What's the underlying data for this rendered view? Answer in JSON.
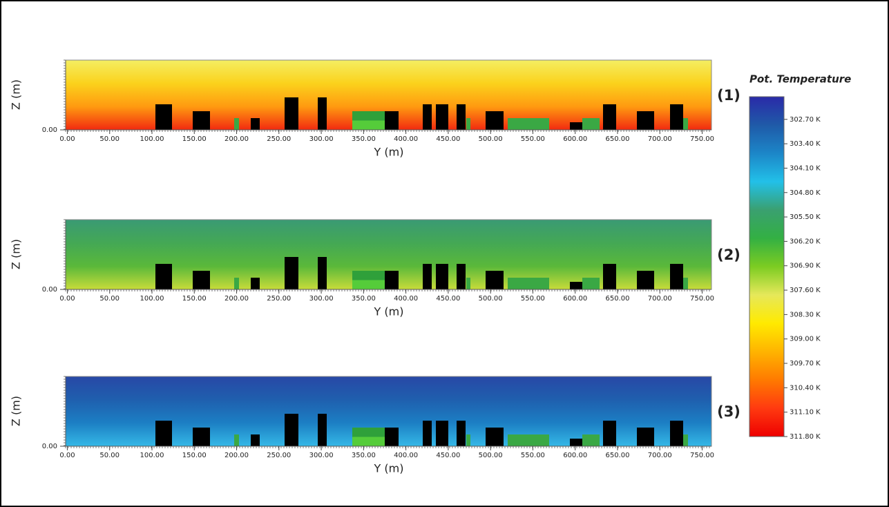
{
  "chart_data": [
    {
      "type": "heatmap",
      "title": "(1)",
      "xlabel": "Y (m)",
      "ylabel": "Z (m)",
      "xlim": [
        -2,
        761
      ],
      "ylim": [
        0,
        41
      ],
      "xticks": [
        {
          "value": 0,
          "label": "0.00"
        },
        {
          "value": 50,
          "label": "50.00"
        },
        {
          "value": 100,
          "label": "100.00"
        },
        {
          "value": 150,
          "label": "150.00"
        },
        {
          "value": 200,
          "label": "200.00"
        },
        {
          "value": 250,
          "label": "250.00"
        },
        {
          "value": 300,
          "label": "300.00"
        },
        {
          "value": 350,
          "label": "350.00"
        },
        {
          "value": 400,
          "label": "400.00"
        },
        {
          "value": 450,
          "label": "450.00"
        },
        {
          "value": 500,
          "label": "500.00"
        },
        {
          "value": 550,
          "label": "550.00"
        },
        {
          "value": 600,
          "label": "600.00"
        },
        {
          "value": 650,
          "label": "650.00"
        },
        {
          "value": 700,
          "label": "700.00"
        },
        {
          "value": 750,
          "label": "750.00"
        }
      ],
      "yticks": [
        {
          "value": 0,
          "label": "0.00"
        }
      ],
      "colors": [
        "#f4ee62",
        "#fbd21c",
        "#ff9a10",
        "#f22a10"
      ]
    },
    {
      "type": "heatmap",
      "title": "(2)",
      "xlabel": "Y (m)",
      "ylabel": "Z (m)",
      "xlim": [
        -2,
        761
      ],
      "ylim": [
        0,
        41
      ],
      "xticks": [
        {
          "value": 0,
          "label": "0.00"
        },
        {
          "value": 50,
          "label": "50.00"
        },
        {
          "value": 100,
          "label": "100.00"
        },
        {
          "value": 150,
          "label": "150.00"
        },
        {
          "value": 200,
          "label": "200.00"
        },
        {
          "value": 250,
          "label": "250.00"
        },
        {
          "value": 300,
          "label": "300.00"
        },
        {
          "value": 350,
          "label": "350.00"
        },
        {
          "value": 400,
          "label": "400.00"
        },
        {
          "value": 450,
          "label": "450.00"
        },
        {
          "value": 500,
          "label": "500.00"
        },
        {
          "value": 550,
          "label": "550.00"
        },
        {
          "value": 600,
          "label": "600.00"
        },
        {
          "value": 650,
          "label": "650.00"
        },
        {
          "value": 700,
          "label": "700.00"
        },
        {
          "value": 750,
          "label": "750.00"
        }
      ],
      "yticks": [
        {
          "value": 0,
          "label": "0.00"
        }
      ],
      "colors": [
        "#3a9a74",
        "#44a855",
        "#5ab83a",
        "#c8dc3a"
      ]
    },
    {
      "type": "heatmap",
      "title": "(3)",
      "xlabel": "Y (m)",
      "ylabel": "Z (m)",
      "xlim": [
        -2,
        761
      ],
      "ylim": [
        0,
        41
      ],
      "xticks": [
        {
          "value": 0,
          "label": "0.00"
        },
        {
          "value": 50,
          "label": "50.00"
        },
        {
          "value": 100,
          "label": "100.00"
        },
        {
          "value": 150,
          "label": "150.00"
        },
        {
          "value": 200,
          "label": "200.00"
        },
        {
          "value": 250,
          "label": "250.00"
        },
        {
          "value": 300,
          "label": "300.00"
        },
        {
          "value": 350,
          "label": "350.00"
        },
        {
          "value": 400,
          "label": "400.00"
        },
        {
          "value": 450,
          "label": "450.00"
        },
        {
          "value": 500,
          "label": "500.00"
        },
        {
          "value": 550,
          "label": "550.00"
        },
        {
          "value": 600,
          "label": "600.00"
        },
        {
          "value": 650,
          "label": "650.00"
        },
        {
          "value": 700,
          "label": "700.00"
        },
        {
          "value": 750,
          "label": "750.00"
        }
      ],
      "yticks": [
        {
          "value": 0,
          "label": "0.00"
        }
      ],
      "colors": [
        "#2848a6",
        "#1f5fae",
        "#1c7fc4",
        "#35b8e6"
      ]
    }
  ],
  "colorbar": {
    "title": "Pot. Temperature",
    "lim": [
      302.05,
      311.8
    ],
    "ticks": [
      {
        "value": 302.7,
        "label": "302.70 K"
      },
      {
        "value": 303.4,
        "label": "303.40 K"
      },
      {
        "value": 304.1,
        "label": "304.10 K"
      },
      {
        "value": 304.8,
        "label": "304.80 K"
      },
      {
        "value": 305.5,
        "label": "305.50 K"
      },
      {
        "value": 306.2,
        "label": "306.20 K"
      },
      {
        "value": 306.9,
        "label": "306.90 K"
      },
      {
        "value": 307.6,
        "label": "307.60 K"
      },
      {
        "value": 308.3,
        "label": "308.30 K"
      },
      {
        "value": 309,
        "label": "309.00 K"
      },
      {
        "value": 309.7,
        "label": "309.70 K"
      },
      {
        "value": 310.4,
        "label": "310.40 K"
      },
      {
        "value": 311.1,
        "label": "311.10 K"
      },
      {
        "value": 311.8,
        "label": "311.80 K"
      }
    ],
    "colors": [
      "#2a2aa8",
      "#1f5aa8",
      "#1c86c8",
      "#22c0e8",
      "#3aa070",
      "#33b043",
      "#7ccc22",
      "#e6e85a",
      "#ffea00",
      "#ffb400",
      "#ff7a00",
      "#ff3a10",
      "#ee0000"
    ]
  }
}
